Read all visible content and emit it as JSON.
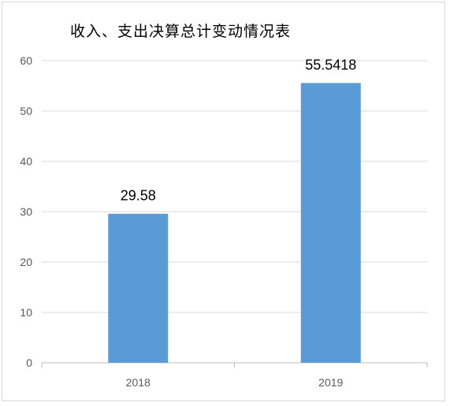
{
  "chart_data": {
    "type": "bar",
    "title": "收入、支出决算总计变动情况表",
    "categories": [
      "2018",
      "2019"
    ],
    "values": [
      29.58,
      55.5418
    ],
    "value_labels": [
      "29.58",
      "55.5418"
    ],
    "ylim": [
      0,
      60
    ],
    "yticks": [
      "0",
      "10",
      "20",
      "30",
      "40",
      "50",
      "60"
    ],
    "xlabel": "",
    "ylabel": "",
    "grid": true,
    "bar_color": "#5b9bd5",
    "grid_color": "#d9d9d9"
  }
}
